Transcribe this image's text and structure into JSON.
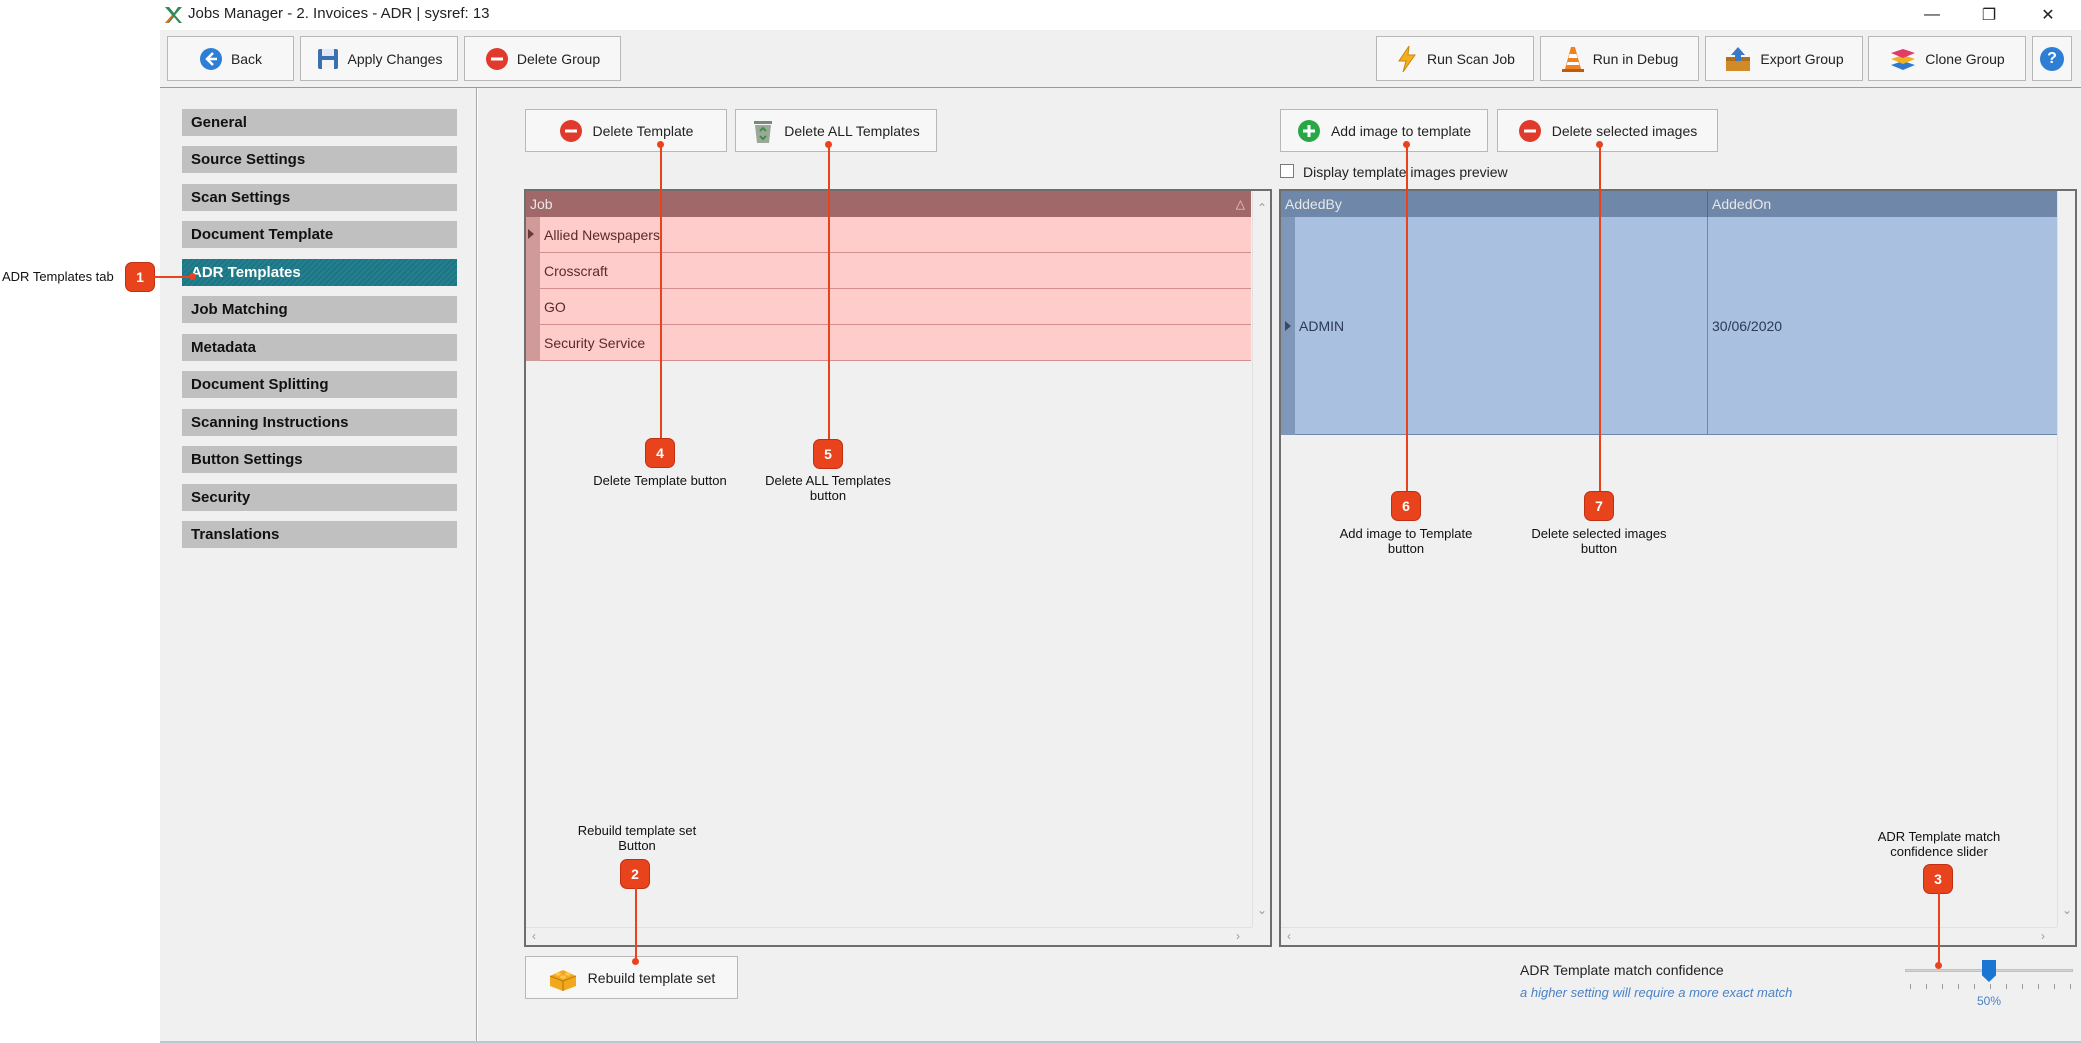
{
  "window": {
    "title": "Jobs Manager - 2. Invoices - ADR  |  sysref: 13",
    "minimize": "—",
    "restore": "❐",
    "close": "✕"
  },
  "toolbar": {
    "back": "Back",
    "apply": "Apply Changes",
    "delete_group": "Delete Group",
    "run_scan": "Run Scan Job",
    "run_debug": "Run in Debug",
    "export_group": "Export Group",
    "clone_group": "Clone Group",
    "help": "?"
  },
  "nav": {
    "items": [
      {
        "label": "General"
      },
      {
        "label": "Source Settings"
      },
      {
        "label": "Scan Settings"
      },
      {
        "label": "Document Template"
      },
      {
        "label": "ADR Templates"
      },
      {
        "label": "Job Matching"
      },
      {
        "label": "Metadata"
      },
      {
        "label": "Document Splitting"
      },
      {
        "label": "Scanning Instructions"
      },
      {
        "label": "Button Settings"
      },
      {
        "label": "Security"
      },
      {
        "label": "Translations"
      }
    ],
    "active_index": 4
  },
  "templates": {
    "delete_template": "Delete Template",
    "delete_all": "Delete ALL Templates",
    "column_job": "Job",
    "sort_glyph": "△",
    "rows": [
      "Allied Newspapers",
      "Crosscraft",
      "GO",
      "Security Service"
    ],
    "rebuild": "Rebuild template set"
  },
  "images": {
    "add_image": "Add image to template",
    "delete_selected": "Delete selected images",
    "preview_checkbox": "Display template images preview",
    "preview_checked": false,
    "columns": [
      "AddedBy",
      "AddedOn"
    ],
    "rows": [
      {
        "added_by": "ADMIN",
        "added_on": "30/06/2020"
      }
    ]
  },
  "confidence": {
    "label": "ADR Template match confidence",
    "hint": "a higher setting will require a more exact match",
    "value_text": "50%",
    "value": 0.5
  },
  "annotations": {
    "a1": {
      "num": "1",
      "text": "ADR Templates tab"
    },
    "a2": {
      "num": "2",
      "text": "Rebuild template set Button"
    },
    "a3": {
      "num": "3",
      "text": "ADR Template match confidence slider"
    },
    "a4": {
      "num": "4",
      "text": "Delete Template button"
    },
    "a5": {
      "num": "5",
      "text": "Delete ALL Templates button"
    },
    "a6": {
      "num": "6",
      "text": "Add image to Template button"
    },
    "a7": {
      "num": "7",
      "text": "Delete selected images button"
    }
  },
  "colors": {
    "accent": "#1a7686",
    "callout": "#e8431c",
    "templates_header": "#a06868",
    "templates_row": "#ffcccc",
    "images_header": "#6f87a8",
    "images_row": "#a9c0e0"
  }
}
